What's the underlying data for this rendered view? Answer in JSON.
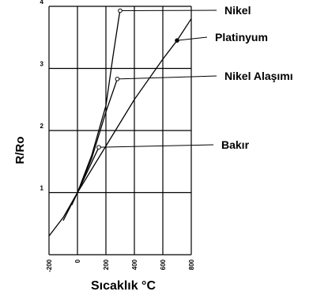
{
  "chart_data": {
    "type": "line",
    "xlabel": "Sıcaklık  °C",
    "ylabel": "R/Ro",
    "xlim": [
      -200,
      800
    ],
    "ylim": [
      0,
      4
    ],
    "x_ticks": [
      -200,
      0,
      200,
      400,
      600,
      800
    ],
    "x_tick_labels": [
      "-200",
      "0",
      "200",
      "400",
      "600",
      "800"
    ],
    "y_ticks": [
      1,
      2,
      3,
      4
    ],
    "y_tick_labels": [
      "1",
      "2",
      "3",
      "4"
    ],
    "grid": true,
    "legend": "callout labels on the right",
    "series": [
      {
        "name": "Nikel",
        "x": [
          0,
          100,
          200,
          250,
          300
        ],
        "y": [
          1.0,
          1.6,
          2.4,
          3.2,
          3.95
        ],
        "marker_x": 300,
        "marker_y": 3.93
      },
      {
        "name": "Platinyum",
        "x": [
          -200,
          -100,
          0,
          200,
          400,
          600,
          700,
          800
        ],
        "y": [
          0.3,
          0.6,
          1.0,
          1.75,
          2.5,
          3.15,
          3.45,
          3.8
        ],
        "marker_x": 700,
        "marker_y": 3.45
      },
      {
        "name": "Nikel Alaşımı",
        "x": [
          -40,
          0,
          100,
          200,
          280
        ],
        "y": [
          0.8,
          1.0,
          1.55,
          2.3,
          2.83
        ],
        "marker_x": 280,
        "marker_y": 2.83
      },
      {
        "name": "Bakır",
        "x": [
          -100,
          0,
          150
        ],
        "y": [
          0.55,
          1.0,
          1.73
        ],
        "marker_x": 150,
        "marker_y": 1.73
      }
    ]
  }
}
